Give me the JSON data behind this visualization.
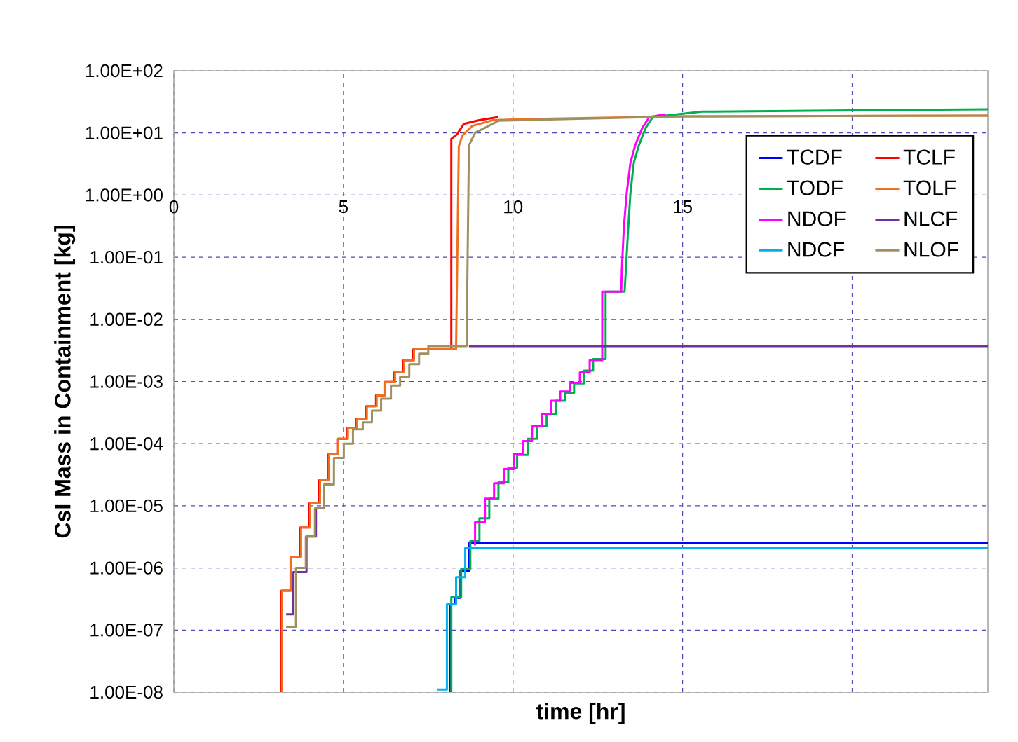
{
  "chart_data": {
    "type": "line",
    "xlabel": "time [hr]",
    "ylabel": "CsI Mass in Containment [kg]",
    "log": "y",
    "grid": true,
    "legend": "top right",
    "xlim": [
      0,
      24
    ],
    "xticks": [
      0,
      5,
      10,
      15,
      {
        "value": 20,
        "label": null
      }
    ],
    "ylim": [
      1e-08,
      100
    ],
    "yticks": [
      {
        "value": 1e-08,
        "label": "1.00E-08"
      },
      {
        "value": 1e-07,
        "label": "1.00E-07"
      },
      {
        "value": 1e-06,
        "label": "1.00E-06"
      },
      {
        "value": 1e-05,
        "label": "1.00E-05"
      },
      {
        "value": 0.0001,
        "label": "1.00E-04"
      },
      {
        "value": 0.001,
        "label": "1.00E-03"
      },
      {
        "value": 0.01,
        "label": "1.00E-02"
      },
      {
        "value": 0.1,
        "label": "1.00E-01"
      },
      {
        "value": 1,
        "label": "1.00E+00"
      },
      {
        "value": 10,
        "label": "1.00E+01"
      },
      {
        "value": 100,
        "label": "1.00E+02"
      }
    ],
    "series": [
      {
        "name": "TCDF",
        "color": "#0000ff",
        "x": [
          8.15,
          8.15,
          8.3,
          8.3,
          8.45,
          8.45,
          8.7,
          8.7,
          24
        ],
        "values": [
          1e-08,
          2.6e-07,
          2.6e-07,
          3.3e-07,
          3.3e-07,
          9e-07,
          9e-07,
          2.5e-06,
          2.5e-06
        ]
      },
      {
        "name": "TCLF",
        "color": "#ff0000",
        "x": [
          3.17,
          3.17,
          3.44,
          3.44,
          3.73,
          3.73,
          4.0,
          4.0,
          4.29,
          4.29,
          4.56,
          4.56,
          4.82,
          4.82,
          5.11,
          5.11,
          5.38,
          5.38,
          5.67,
          5.67,
          5.96,
          5.96,
          6.21,
          6.21,
          6.5,
          6.5,
          6.77,
          6.77,
          7.06,
          7.06,
          8.18,
          8.18,
          8.35,
          8.55,
          9.0,
          9.57
        ],
        "values": [
          1e-08,
          4.3e-07,
          4.3e-07,
          1.5e-06,
          1.5e-06,
          4.5e-06,
          4.5e-06,
          1.1e-05,
          1.1e-05,
          2.6e-05,
          2.6e-05,
          6.8e-05,
          6.8e-05,
          0.00012,
          0.00012,
          0.00018,
          0.00018,
          0.00025,
          0.00025,
          0.0004,
          0.0004,
          0.0006,
          0.0006,
          0.00098,
          0.00098,
          0.0014,
          0.0014,
          0.0022,
          0.0022,
          0.0033,
          0.0033,
          8,
          9.5,
          14,
          16,
          18
        ]
      },
      {
        "name": "TODF",
        "color": "#00b050",
        "x": [
          8.18,
          8.18,
          8.47,
          8.47,
          8.74,
          8.74,
          9.01,
          9.01,
          9.3,
          9.3,
          9.57,
          9.57,
          9.86,
          9.86,
          10.12,
          10.12,
          10.43,
          10.43,
          10.7,
          10.7,
          10.99,
          10.99,
          11.26,
          11.26,
          11.53,
          11.53,
          11.8,
          11.8,
          12.09,
          12.09,
          12.36,
          12.36,
          12.73,
          12.73,
          13.29,
          13.33,
          13.4,
          13.46,
          13.56,
          13.71,
          13.91,
          14.12,
          15.57,
          24
        ],
        "values": [
          1e-08,
          3.4e-07,
          3.4e-07,
          9.6e-07,
          9.6e-07,
          2.7e-06,
          2.7e-06,
          6.3e-06,
          6.3e-06,
          1.3e-05,
          1.3e-05,
          2.4e-05,
          2.4e-05,
          4.1e-05,
          4.1e-05,
          6.6e-05,
          6.6e-05,
          0.00012,
          0.00012,
          0.00019,
          0.00019,
          0.0003,
          0.0003,
          0.00049,
          0.00049,
          0.00066,
          0.00066,
          0.00093,
          0.00093,
          0.0015,
          0.0015,
          0.0023,
          0.0023,
          0.028,
          0.028,
          0.067,
          0.32,
          1.05,
          3.3,
          6.3,
          12,
          18,
          22,
          24
        ]
      },
      {
        "name": "TOLF",
        "color": "#f07020",
        "x": [
          3.19,
          3.19,
          3.46,
          3.46,
          3.75,
          3.75,
          4.02,
          4.02,
          4.31,
          4.31,
          4.58,
          4.58,
          4.84,
          4.84,
          5.13,
          5.13,
          5.4,
          5.4,
          5.69,
          5.69,
          5.98,
          5.98,
          6.23,
          6.23,
          6.52,
          6.52,
          6.79,
          6.79,
          7.08,
          7.08,
          8.32,
          8.4,
          8.5,
          8.8,
          9.4,
          10,
          15,
          24
        ],
        "values": [
          1e-08,
          4.3e-07,
          4.3e-07,
          1.5e-06,
          1.5e-06,
          4.5e-06,
          4.5e-06,
          1.1e-05,
          1.1e-05,
          2.6e-05,
          2.6e-05,
          6.8e-05,
          6.8e-05,
          0.00012,
          0.00012,
          0.00018,
          0.00018,
          0.00025,
          0.00025,
          0.0004,
          0.0004,
          0.0006,
          0.0006,
          0.00098,
          0.00098,
          0.0014,
          0.0014,
          0.0022,
          0.0022,
          0.0033,
          0.0033,
          6,
          9,
          13,
          16,
          16.5,
          18.5,
          19
        ]
      },
      {
        "name": "NDOF",
        "color": "#ff00ff",
        "x": [
          8.88,
          8.88,
          9.17,
          9.17,
          9.44,
          9.44,
          9.73,
          9.73,
          10.02,
          10.02,
          10.29,
          10.29,
          10.56,
          10.56,
          10.85,
          10.85,
          11.12,
          11.12,
          11.39,
          11.39,
          11.68,
          11.68,
          11.97,
          11.97,
          12.26,
          12.26,
          12.63,
          12.63,
          13.19,
          13.21,
          13.27,
          13.35,
          13.46,
          13.6,
          13.81,
          14.02,
          14.5
        ],
        "values": [
          2.3e-06,
          5.5e-06,
          5.5e-06,
          1.3e-05,
          1.3e-05,
          2.3e-05,
          2.3e-05,
          3.9e-05,
          3.9e-05,
          6.8e-05,
          6.8e-05,
          0.00011,
          0.00011,
          0.00019,
          0.00019,
          0.0003,
          0.0003,
          0.00049,
          0.00049,
          0.00069,
          0.00069,
          0.00095,
          0.00095,
          0.0014,
          0.0014,
          0.0022,
          0.0022,
          0.028,
          0.028,
          0.067,
          0.32,
          1.05,
          3.3,
          6.3,
          12,
          18,
          20
        ]
      },
      {
        "name": "NLCF",
        "color": "#7030a0",
        "x": [
          3.31,
          3.52,
          3.52,
          3.91,
          3.91,
          4.19,
          4.19,
          6.0,
          8.7,
          24
        ],
        "values": [
          1.8e-07,
          1.8e-07,
          8.6e-07,
          8.6e-07,
          3.2e-06,
          3.2e-06,
          9.1e-06,
          null,
          0.0037,
          0.0037
        ]
      },
      {
        "name": "NDCF",
        "color": "#00b0f0",
        "x": [
          7.76,
          8.05,
          8.05,
          8.32,
          8.32,
          8.59,
          8.59,
          24
        ],
        "values": [
          1.1e-08,
          1.1e-08,
          2.6e-07,
          2.6e-07,
          7.1e-07,
          7.1e-07,
          2.1e-06,
          2.1e-06
        ]
      },
      {
        "name": "NLOF",
        "color": "#a09060",
        "x": [
          3.31,
          3.6,
          3.6,
          3.89,
          3.89,
          4.16,
          4.16,
          4.43,
          4.43,
          4.72,
          4.72,
          5.01,
          5.01,
          5.28,
          5.28,
          5.57,
          5.57,
          5.84,
          5.84,
          6.11,
          6.11,
          6.4,
          6.4,
          6.67,
          6.67,
          6.94,
          6.94,
          7.23,
          7.23,
          7.5,
          7.5,
          8.63,
          8.7,
          8.88,
          9.57,
          15,
          24
        ],
        "values": [
          1.1e-07,
          1.1e-07,
          1e-06,
          1e-06,
          3.2e-06,
          3.2e-06,
          9.1e-06,
          9.1e-06,
          2.2e-05,
          2.2e-05,
          5.9e-05,
          5.9e-05,
          0.0001,
          0.0001,
          0.00017,
          0.00017,
          0.00022,
          0.00022,
          0.00034,
          0.00034,
          0.00053,
          0.00053,
          0.00086,
          0.00086,
          0.0012,
          0.0012,
          0.0019,
          0.0019,
          0.0028,
          0.0028,
          0.0037,
          0.0037,
          6.3,
          10,
          15.7,
          18.5,
          19
        ]
      }
    ]
  }
}
